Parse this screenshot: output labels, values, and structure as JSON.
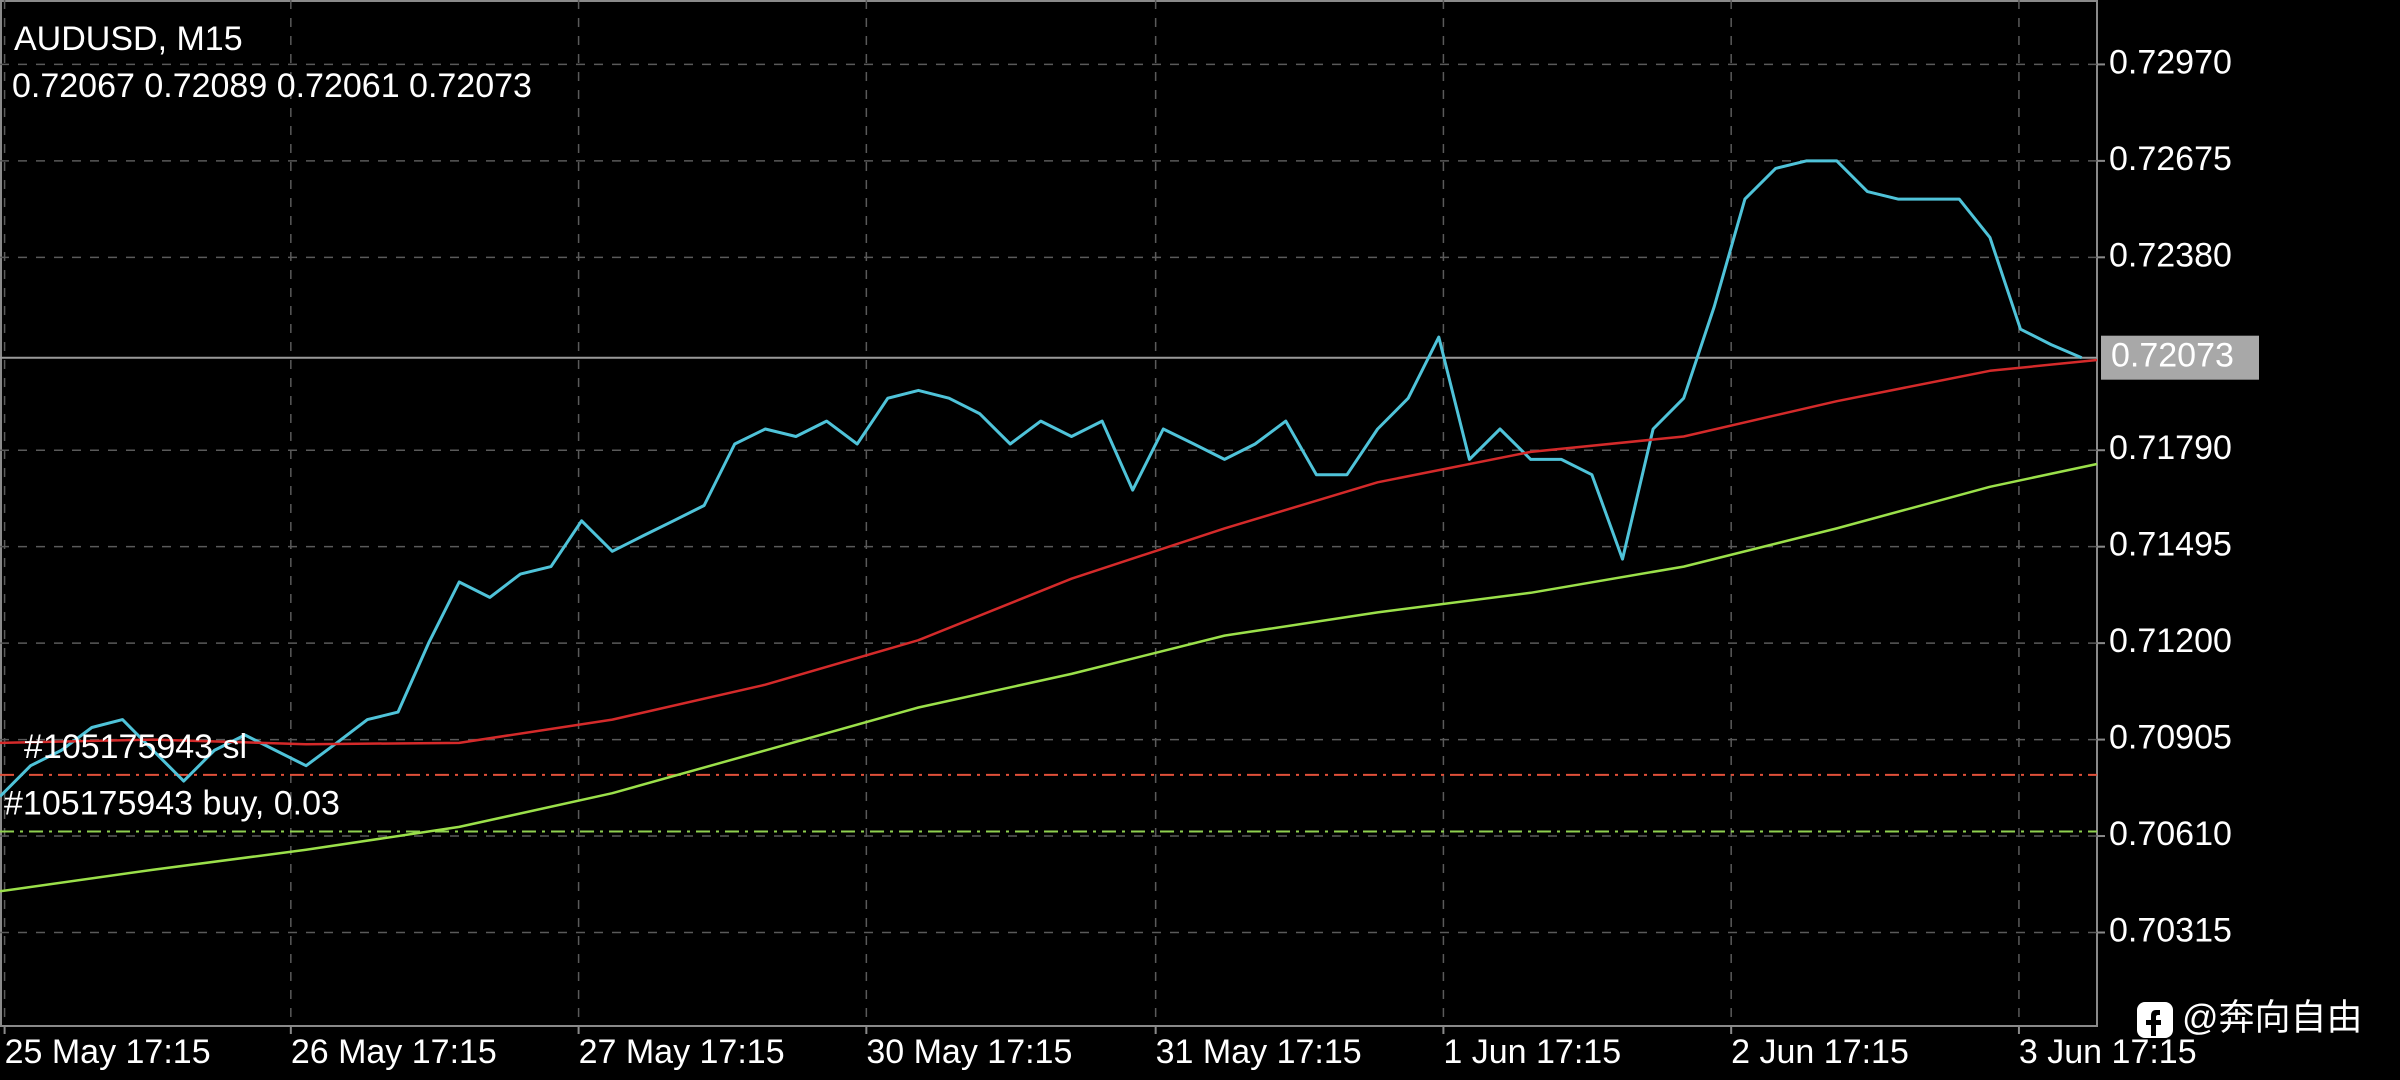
{
  "chart_data": {
    "type": "line",
    "symbol": "AUDUSD, M15",
    "ohlc": "0.72067 0.72089 0.72061 0.72073",
    "watermark": "@奔向自由",
    "grid": true,
    "xlim": [
      0,
      68.5
    ],
    "xticks": [
      {
        "value": 0.15,
        "label": "25 May 17:15"
      },
      {
        "value": 9.5,
        "label": "26 May 17:15"
      },
      {
        "value": 18.9,
        "label": "27 May 17:15"
      },
      {
        "value": 28.3,
        "label": "30 May 17:15"
      },
      {
        "value": 37.75,
        "label": "31 May 17:15"
      },
      {
        "value": 47.15,
        "label": "1 Jun 17:15"
      },
      {
        "value": 56.55,
        "label": "2 Jun 17:15"
      },
      {
        "value": 65.95,
        "label": "3 Jun 17:15"
      }
    ],
    "ylim": [
      0.70029,
      0.73167
    ],
    "yticks": [
      {
        "value": 0.7297,
        "label": "0.72970"
      },
      {
        "value": 0.72675,
        "label": "0.72675"
      },
      {
        "value": 0.7238,
        "label": "0.72380"
      },
      {
        "value": 0.7179,
        "label": "0.71790"
      },
      {
        "value": 0.71495,
        "label": "0.71495"
      },
      {
        "value": 0.712,
        "label": "0.71200"
      },
      {
        "value": 0.70905,
        "label": "0.70905"
      },
      {
        "value": 0.7061,
        "label": "0.70610"
      },
      {
        "value": 0.70315,
        "label": "0.70315"
      }
    ],
    "current_price": 0.72073,
    "levels": [
      {
        "label": "#105175943 sl",
        "value": 0.70797,
        "color": "#e0503a"
      },
      {
        "label": "#105175943 buy, 0.03",
        "value": 0.70624,
        "color": "#8fd14f"
      }
    ],
    "series": [
      {
        "color": "#4fc3d9",
        "x": [
          0,
          1,
          2,
          3,
          4,
          5,
          6,
          7,
          8,
          9,
          10,
          11,
          12,
          13,
          14,
          15,
          16,
          17,
          18,
          19,
          20,
          21,
          22,
          23,
          24,
          25,
          26,
          27,
          28,
          29,
          30,
          31,
          32,
          33,
          34,
          35,
          36,
          37,
          38,
          39,
          40,
          41,
          42,
          43,
          44,
          45,
          46,
          47,
          48,
          49,
          50,
          51,
          52,
          53,
          54,
          55,
          56,
          57,
          58,
          59,
          60,
          61,
          62,
          63,
          64,
          65,
          66,
          67,
          68
        ],
        "values": [
          0.70731,
          0.70825,
          0.70872,
          0.70942,
          0.70966,
          0.70872,
          0.70778,
          0.70872,
          0.70919,
          0.70872,
          0.70825,
          0.70895,
          0.70966,
          0.70989,
          0.712,
          0.71387,
          0.7134,
          0.71411,
          0.71434,
          0.71574,
          0.71481,
          0.71528,
          0.71574,
          0.71621,
          0.71809,
          0.71855,
          0.71832,
          0.71879,
          0.71809,
          0.71949,
          0.71973,
          0.71949,
          0.71902,
          0.71809,
          0.71879,
          0.71832,
          0.71879,
          0.71668,
          0.71855,
          0.71809,
          0.71762,
          0.71809,
          0.71879,
          0.71715,
          0.71715,
          0.71855,
          0.71949,
          0.72136,
          0.71762,
          0.71855,
          0.71762,
          0.71762,
          0.71715,
          0.71457,
          0.71855,
          0.71949,
          0.7223,
          0.72558,
          0.72652,
          0.72675,
          0.72675,
          0.72581,
          0.72558,
          0.72558,
          0.72558,
          0.72441,
          0.7216,
          0.72113,
          0.72073
        ]
      },
      {
        "color": "#d42a2a",
        "x": [
          0,
          5,
          10,
          15,
          20,
          25,
          30,
          35,
          40,
          45,
          50,
          55,
          60,
          65,
          68.5
        ],
        "values": [
          0.70895,
          0.70905,
          0.70891,
          0.70895,
          0.70966,
          0.71073,
          0.71209,
          0.71397,
          0.71551,
          0.71692,
          0.71785,
          0.71832,
          0.7194,
          0.72033,
          0.72066
        ]
      },
      {
        "color": "#9be04a",
        "x": [
          0,
          5,
          10,
          15,
          20,
          25,
          30,
          35,
          40,
          45,
          50,
          55,
          60,
          65,
          68.5
        ],
        "values": [
          0.70441,
          0.70507,
          0.70568,
          0.70638,
          0.70741,
          0.70872,
          0.71003,
          0.71106,
          0.71223,
          0.71294,
          0.71354,
          0.71434,
          0.71551,
          0.71678,
          0.71748
        ]
      }
    ]
  }
}
